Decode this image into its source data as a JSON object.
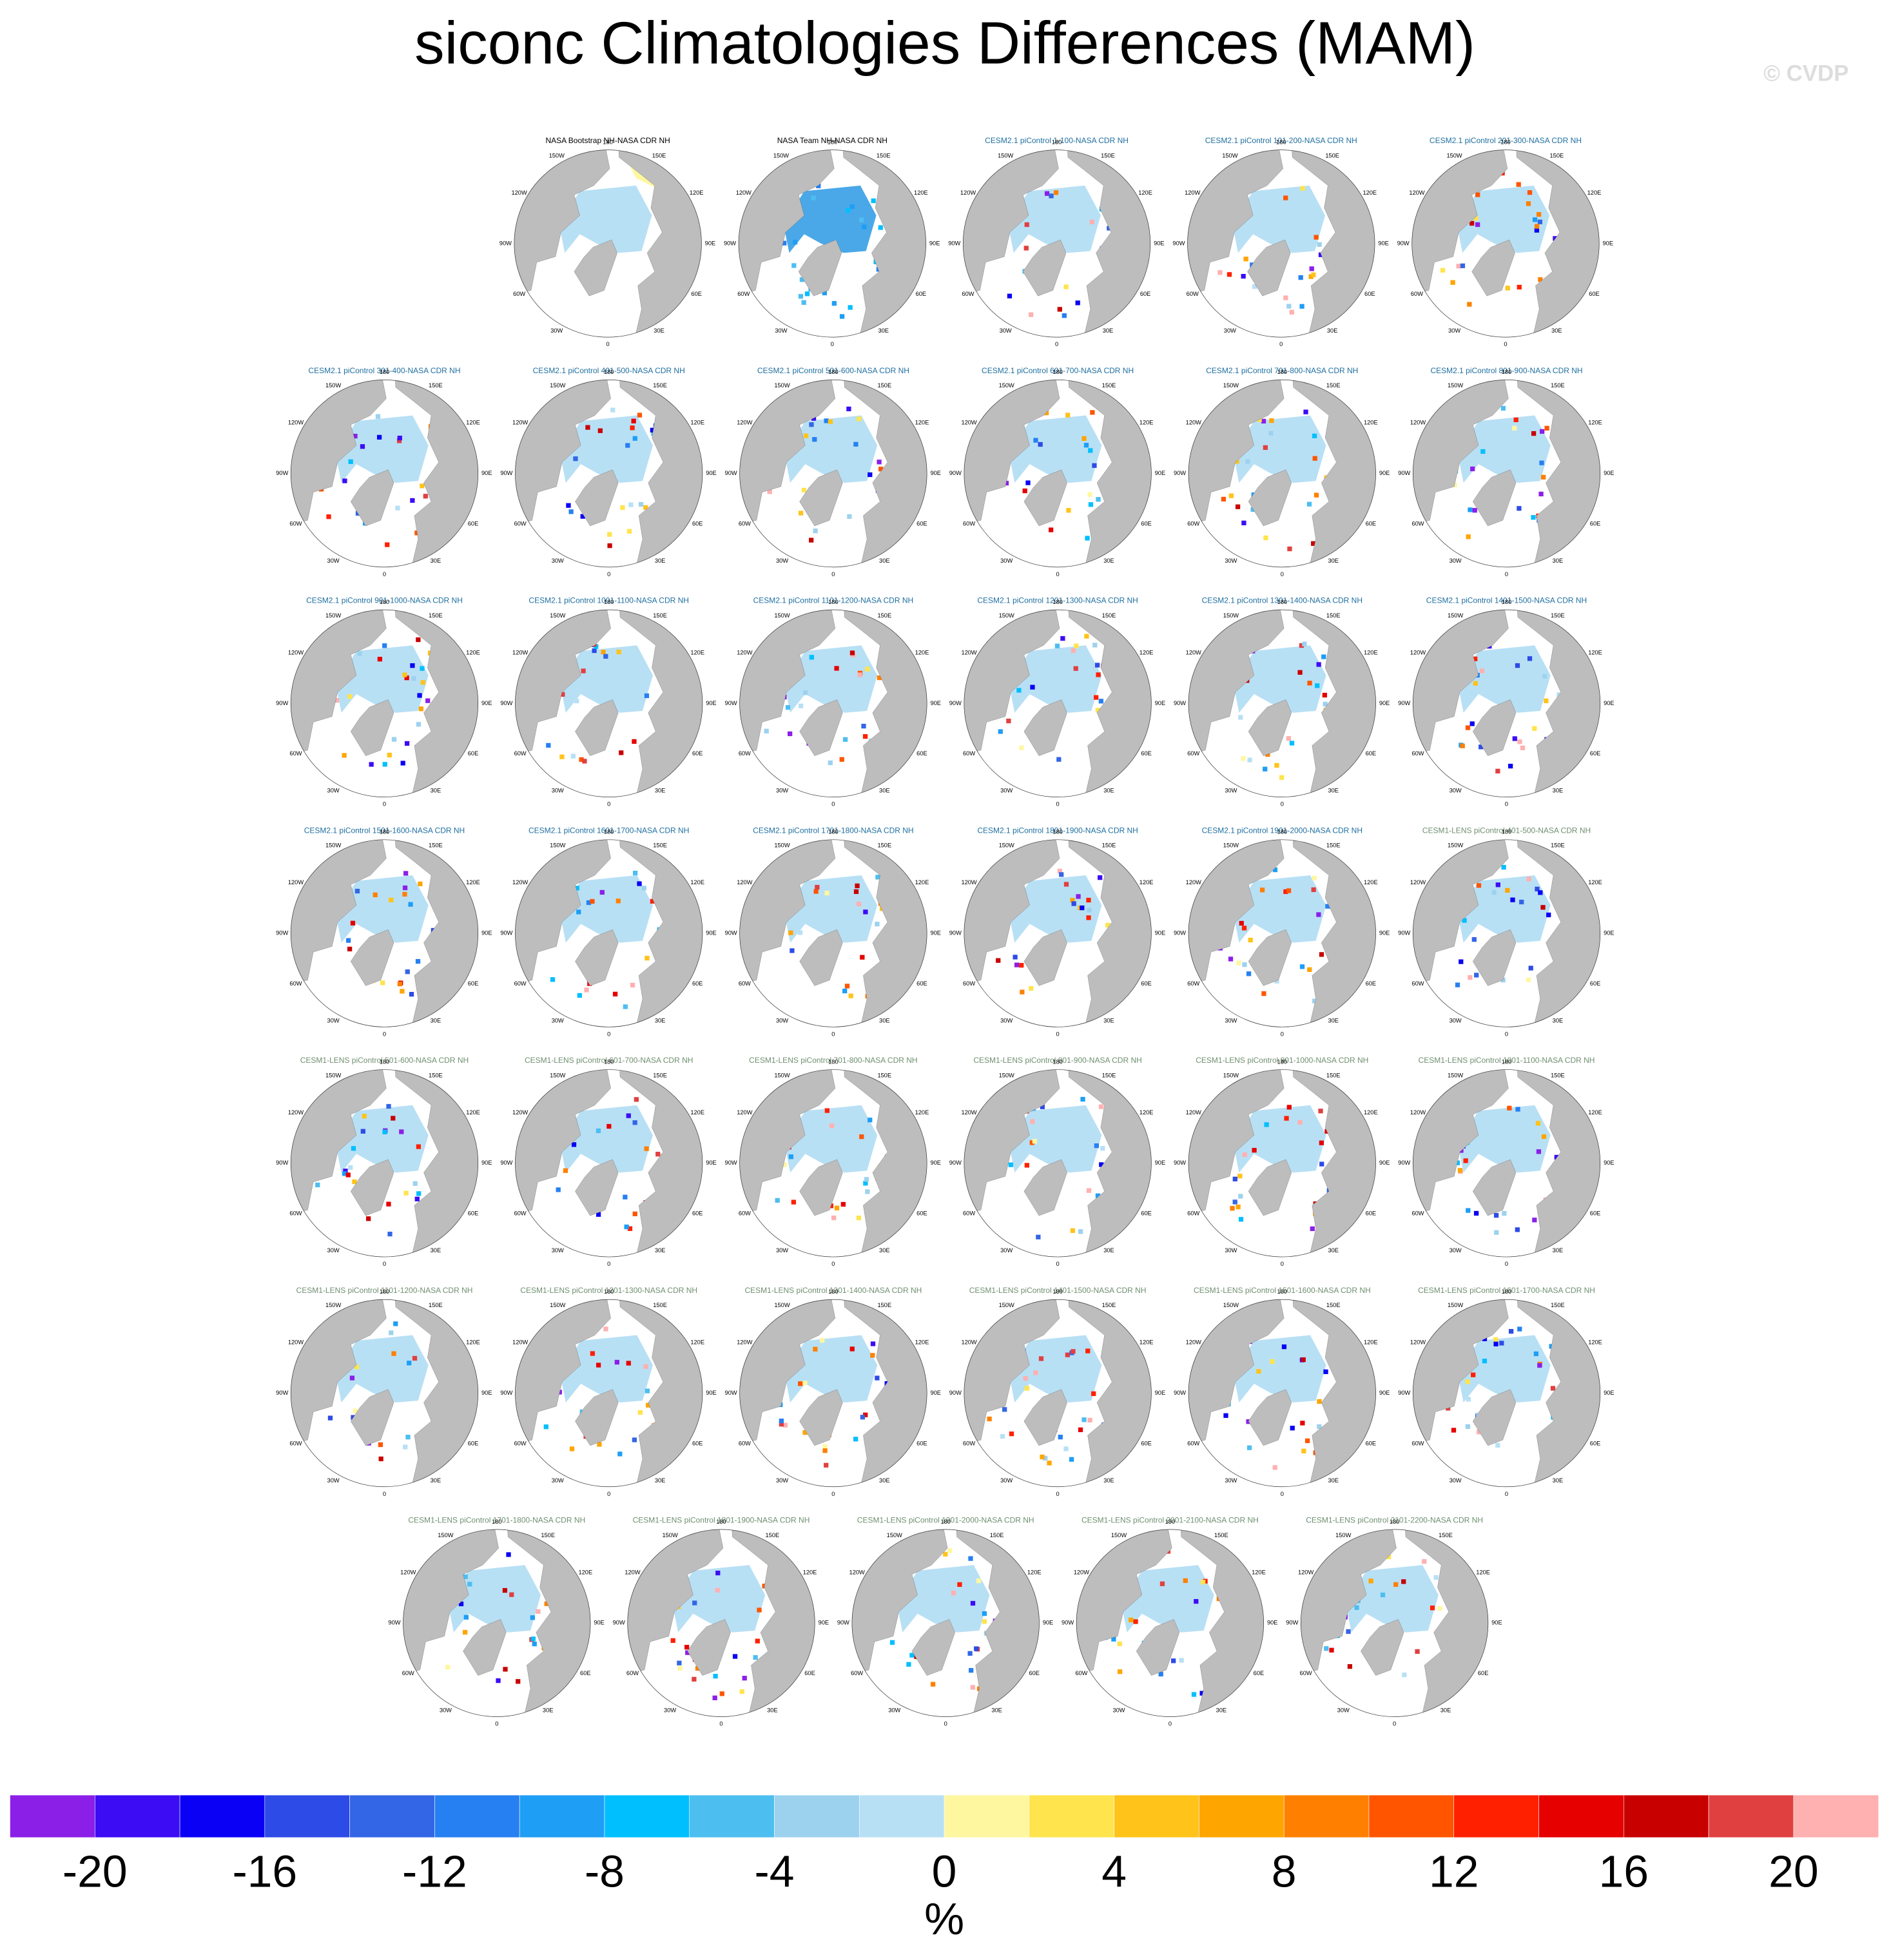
{
  "title": "siconc Climatologies Differences (MAM)",
  "watermark": "© CVDP",
  "lon_labels": [
    "0",
    "30E",
    "60E",
    "90E",
    "120E",
    "150E",
    "180",
    "150W",
    "120W",
    "90W",
    "60W",
    "30W"
  ],
  "panels": [
    {
      "title": "NASA Bootstrap NH-NASA CDR NH",
      "color": "#000000"
    },
    {
      "title": "NASA Team NH-NASA CDR NH",
      "color": "#000000"
    },
    {
      "title": "CESM2.1 piControl 1-100-NASA CDR NH",
      "color": "#1f6fa0"
    },
    {
      "title": "CESM2.1 piControl 101-200-NASA CDR NH",
      "color": "#1f6fa0"
    },
    {
      "title": "CESM2.1 piControl 201-300-NASA CDR NH",
      "color": "#1f6fa0"
    },
    {
      "title": "CESM2.1 piControl 301-400-NASA CDR NH",
      "color": "#1f6fa0"
    },
    {
      "title": "CESM2.1 piControl 401-500-NASA CDR NH",
      "color": "#1f6fa0"
    },
    {
      "title": "CESM2.1 piControl 501-600-NASA CDR NH",
      "color": "#1f6fa0"
    },
    {
      "title": "CESM2.1 piControl 601-700-NASA CDR NH",
      "color": "#1f6fa0"
    },
    {
      "title": "CESM2.1 piControl 701-800-NASA CDR NH",
      "color": "#1f6fa0"
    },
    {
      "title": "CESM2.1 piControl 801-900-NASA CDR NH",
      "color": "#1f6fa0"
    },
    {
      "title": "CESM2.1 piControl 901-1000-NASA CDR NH",
      "color": "#1f6fa0"
    },
    {
      "title": "CESM2.1 piControl 1001-1100-NASA CDR NH",
      "color": "#1f6fa0"
    },
    {
      "title": "CESM2.1 piControl 1101-1200-NASA CDR NH",
      "color": "#1f6fa0"
    },
    {
      "title": "CESM2.1 piControl 1201-1300-NASA CDR NH",
      "color": "#1f6fa0"
    },
    {
      "title": "CESM2.1 piControl 1301-1400-NASA CDR NH",
      "color": "#1f6fa0"
    },
    {
      "title": "CESM2.1 piControl 1401-1500-NASA CDR NH",
      "color": "#1f6fa0"
    },
    {
      "title": "CESM2.1 piControl 1501-1600-NASA CDR NH",
      "color": "#1f6fa0"
    },
    {
      "title": "CESM2.1 piControl 1601-1700-NASA CDR NH",
      "color": "#1f6fa0"
    },
    {
      "title": "CESM2.1 piControl 1701-1800-NASA CDR NH",
      "color": "#1f6fa0"
    },
    {
      "title": "CESM2.1 piControl 1801-1900-NASA CDR NH",
      "color": "#1f6fa0"
    },
    {
      "title": "CESM2.1 piControl 1901-2000-NASA CDR NH",
      "color": "#1f6fa0"
    },
    {
      "title": "CESM1-LENS piControl 401-500-NASA CDR NH",
      "color": "#6f8f70"
    },
    {
      "title": "CESM1-LENS piControl 501-600-NASA CDR NH",
      "color": "#6f8f70"
    },
    {
      "title": "CESM1-LENS piControl 601-700-NASA CDR NH",
      "color": "#6f8f70"
    },
    {
      "title": "CESM1-LENS piControl 701-800-NASA CDR NH",
      "color": "#6f8f70"
    },
    {
      "title": "CESM1-LENS piControl 801-900-NASA CDR NH",
      "color": "#6f8f70"
    },
    {
      "title": "CESM1-LENS piControl 901-1000-NASA CDR NH",
      "color": "#6f8f70"
    },
    {
      "title": "CESM1-LENS piControl 1001-1100-NASA CDR NH",
      "color": "#6f8f70"
    },
    {
      "title": "CESM1-LENS piControl 1101-1200-NASA CDR NH",
      "color": "#6f8f70"
    },
    {
      "title": "CESM1-LENS piControl 1201-1300-NASA CDR NH",
      "color": "#6f8f70"
    },
    {
      "title": "CESM1-LENS piControl 1301-1400-NASA CDR NH",
      "color": "#6f8f70"
    },
    {
      "title": "CESM1-LENS piControl 1401-1500-NASA CDR NH",
      "color": "#6f8f70"
    },
    {
      "title": "CESM1-LENS piControl 1501-1600-NASA CDR NH",
      "color": "#6f8f70"
    },
    {
      "title": "CESM1-LENS piControl 1601-1700-NASA CDR NH",
      "color": "#6f8f70"
    },
    {
      "title": "CESM1-LENS piControl 1701-1800-NASA CDR NH",
      "color": "#6f8f70"
    },
    {
      "title": "CESM1-LENS piControl 1801-1900-NASA CDR NH",
      "color": "#6f8f70"
    },
    {
      "title": "CESM1-LENS piControl 1901-2000-NASA CDR NH",
      "color": "#6f8f70"
    },
    {
      "title": "CESM1-LENS piControl 2001-2100-NASA CDR NH",
      "color": "#6f8f70"
    },
    {
      "title": "CESM1-LENS piControl 2101-2200-NASA CDR NH",
      "color": "#6f8f70"
    }
  ],
  "colorbar": {
    "colors": [
      "#8b1fe8",
      "#3c0cf5",
      "#0a00f5",
      "#2d4be6",
      "#3366e6",
      "#2680f2",
      "#1e9ef5",
      "#00bfff",
      "#4dbef0",
      "#9dd2ee",
      "#b8e0f5",
      "#fff7a0",
      "#ffe44d",
      "#ffc31a",
      "#ffa500",
      "#ff8000",
      "#ff5500",
      "#ff2000",
      "#e60000",
      "#c80000",
      "#e04040",
      "#ffb0b0"
    ],
    "levels": [
      -20,
      -18,
      -16,
      -14,
      -12,
      -10,
      -8,
      -6,
      -4,
      -2,
      0,
      2,
      4,
      6,
      8,
      10,
      12,
      14,
      16,
      18,
      20
    ],
    "ticks": [
      -20,
      -16,
      -12,
      -8,
      -4,
      0,
      4,
      8,
      12,
      16,
      20
    ],
    "label": "%"
  }
}
